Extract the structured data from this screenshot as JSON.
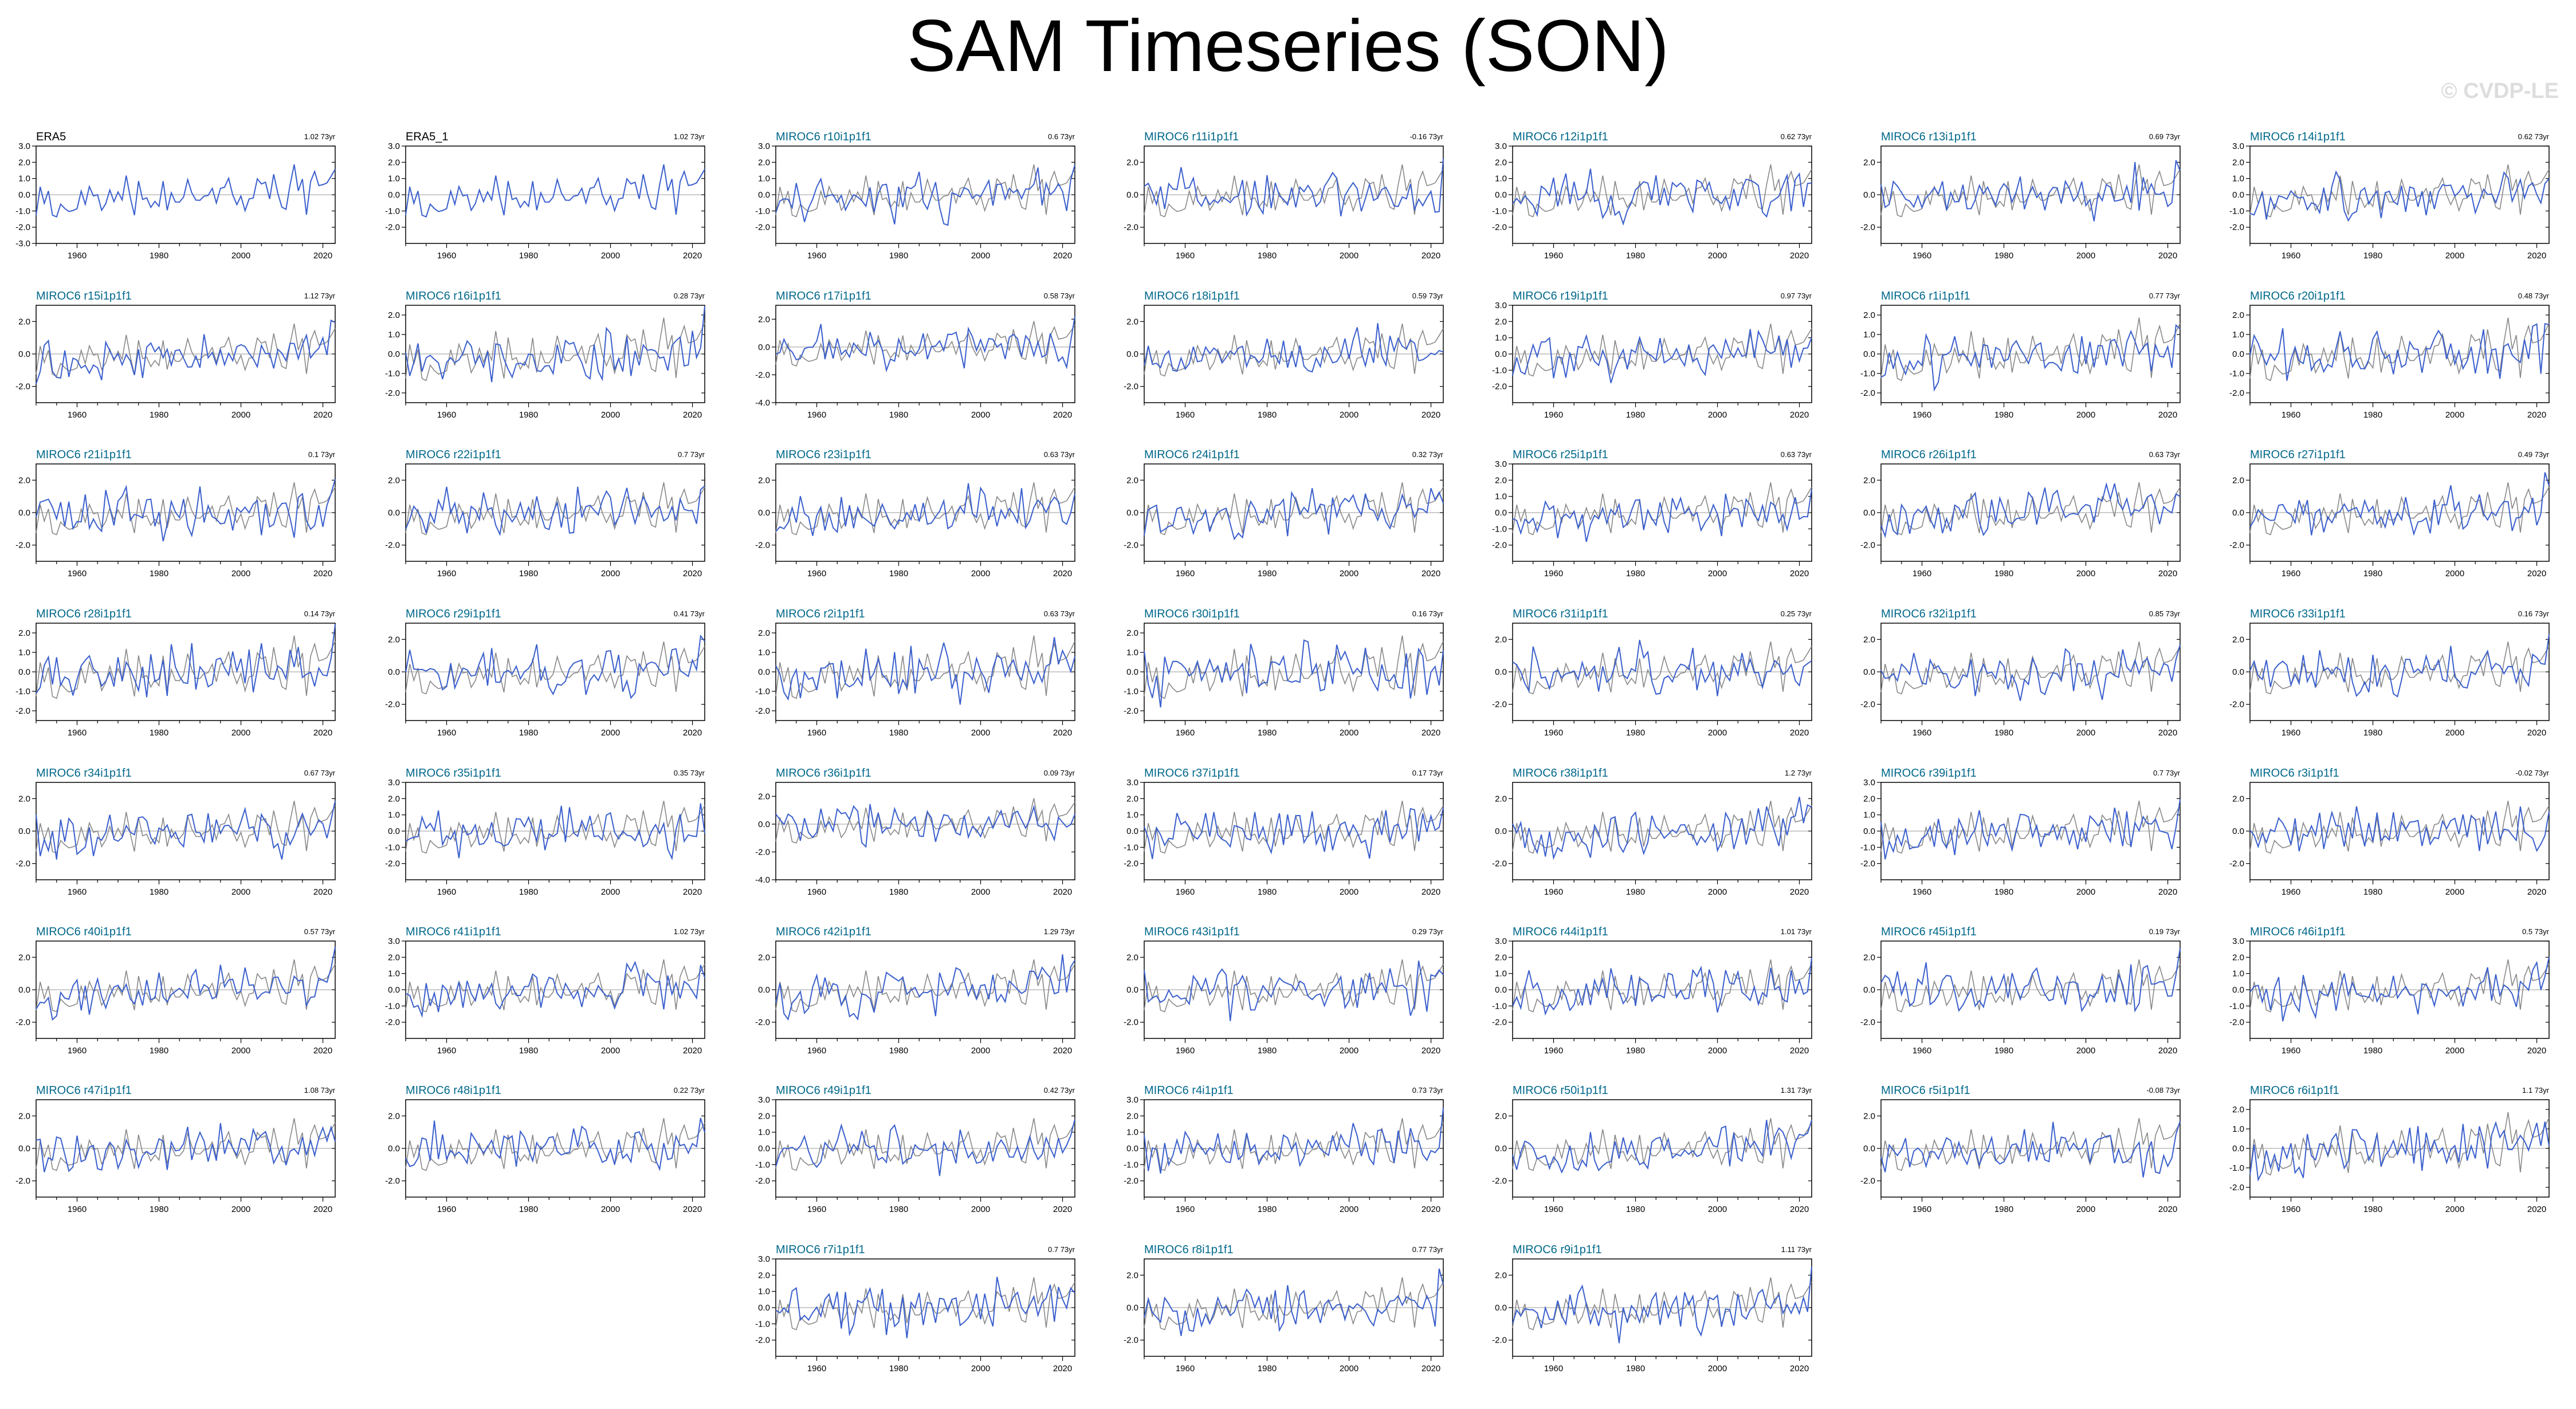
{
  "title": "SAM Timeseries (SON)",
  "watermark": "© CVDP-LE",
  "colors": {
    "model_line": "#3a5fcd",
    "obs_line": "#888888",
    "zero_line": "#9a9a9a",
    "obs_label": "#000000",
    "model_label": "#00688b",
    "frame": "#000000",
    "watermark": "#dddddd"
  },
  "chart_data": {
    "type": "line",
    "x_range": [
      1950,
      2023
    ],
    "x_ticks": [
      1960,
      1980,
      2000,
      2020
    ],
    "series_note_years": "annual SON values 1950-2023",
    "panels": [
      {
        "label": "ERA5",
        "trend": "1.02 73yr",
        "kind": "obs",
        "seed": 101,
        "yticks": [
          -3.0,
          -2.0,
          -1.0,
          0.0,
          1.0,
          2.0,
          3.0
        ],
        "ylim": [
          -3,
          3
        ]
      },
      {
        "label": "ERA5_1",
        "trend": "1.02 73yr",
        "kind": "obs",
        "seed": 101,
        "yticks": [
          -2.0,
          -1.0,
          0.0,
          1.0,
          2.0,
          3.0
        ],
        "ylim": [
          -3,
          3
        ]
      },
      {
        "label": "MIROC6 r10i1p1f1",
        "trend": "0.6 73yr",
        "kind": "model",
        "seed": 10,
        "yticks": [
          -2.0,
          -1.0,
          0.0,
          1.0,
          2.0,
          3.0
        ],
        "ylim": [
          -3,
          3
        ]
      },
      {
        "label": "MIROC6 r11i1p1f1",
        "trend": "-0.16 73yr",
        "kind": "model",
        "seed": 11,
        "yticks": [
          -2.0,
          0.0,
          2.0
        ],
        "ylim": [
          -3,
          3
        ]
      },
      {
        "label": "MIROC6 r12i1p1f1",
        "trend": "0.62 73yr",
        "kind": "model",
        "seed": 12,
        "yticks": [
          -2.0,
          -1.0,
          0.0,
          1.0,
          2.0,
          3.0
        ],
        "ylim": [
          -3,
          3
        ]
      },
      {
        "label": "MIROC6 r13i1p1f1",
        "trend": "0.69 73yr",
        "kind": "model",
        "seed": 13,
        "yticks": [
          -2.0,
          0.0,
          2.0
        ],
        "ylim": [
          -3,
          3
        ]
      },
      {
        "label": "MIROC6 r14i1p1f1",
        "trend": "0.62 73yr",
        "kind": "model",
        "seed": 14,
        "yticks": [
          -2.0,
          -1.0,
          0.0,
          1.0,
          2.0,
          3.0
        ],
        "ylim": [
          -3,
          3
        ]
      },
      {
        "label": "MIROC6 r15i1p1f1",
        "trend": "1.12 73yr",
        "kind": "model",
        "seed": 15,
        "yticks": [
          -2.0,
          0.0,
          2.0
        ],
        "ylim": [
          -3,
          3
        ]
      },
      {
        "label": "MIROC6 r16i1p1f1",
        "trend": "0.28 73yr",
        "kind": "model",
        "seed": 16,
        "yticks": [
          -2.0,
          -1.0,
          0.0,
          1.0,
          2.0
        ],
        "ylim": [
          -2.5,
          2.5
        ]
      },
      {
        "label": "MIROC6 r17i1p1f1",
        "trend": "0.58 73yr",
        "kind": "model",
        "seed": 17,
        "yticks": [
          -4.0,
          -2.0,
          0.0,
          2.0
        ],
        "ylim": [
          -4,
          3
        ]
      },
      {
        "label": "MIROC6 r18i1p1f1",
        "trend": "0.59 73yr",
        "kind": "model",
        "seed": 18,
        "yticks": [
          -2.0,
          0.0,
          2.0
        ],
        "ylim": [
          -3,
          3
        ]
      },
      {
        "label": "MIROC6 r19i1p1f1",
        "trend": "0.97 73yr",
        "kind": "model",
        "seed": 19,
        "yticks": [
          -2.0,
          -1.0,
          0.0,
          1.0,
          2.0,
          3.0
        ],
        "ylim": [
          -3,
          3
        ]
      },
      {
        "label": "MIROC6 r1i1p1f1",
        "trend": "0.77 73yr",
        "kind": "model",
        "seed": 1,
        "yticks": [
          -2.0,
          -1.0,
          0.0,
          1.0,
          2.0
        ],
        "ylim": [
          -2.5,
          2.5
        ]
      },
      {
        "label": "MIROC6 r20i1p1f1",
        "trend": "0.48 73yr",
        "kind": "model",
        "seed": 20,
        "yticks": [
          -2.0,
          -1.0,
          0.0,
          1.0,
          2.0
        ],
        "ylim": [
          -2.5,
          2.5
        ]
      },
      {
        "label": "MIROC6 r21i1p1f1",
        "trend": "0.1 73yr",
        "kind": "model",
        "seed": 21,
        "yticks": [
          -2.0,
          0.0,
          2.0
        ],
        "ylim": [
          -3,
          3
        ]
      },
      {
        "label": "MIROC6 r22i1p1f1",
        "trend": "0.7 73yr",
        "kind": "model",
        "seed": 22,
        "yticks": [
          -2.0,
          0.0,
          2.0
        ],
        "ylim": [
          -3,
          3
        ]
      },
      {
        "label": "MIROC6 r23i1p1f1",
        "trend": "0.63 73yr",
        "kind": "model",
        "seed": 23,
        "yticks": [
          -2.0,
          0.0,
          2.0
        ],
        "ylim": [
          -3,
          3
        ]
      },
      {
        "label": "MIROC6 r24i1p1f1",
        "trend": "0.32 73yr",
        "kind": "model",
        "seed": 24,
        "yticks": [
          -2.0,
          0.0,
          2.0
        ],
        "ylim": [
          -3,
          3
        ]
      },
      {
        "label": "MIROC6 r25i1p1f1",
        "trend": "0.63 73yr",
        "kind": "model",
        "seed": 25,
        "yticks": [
          -2.0,
          -1.0,
          0.0,
          1.0,
          2.0,
          3.0
        ],
        "ylim": [
          -3,
          3
        ]
      },
      {
        "label": "MIROC6 r26i1p1f1",
        "trend": "0.63 73yr",
        "kind": "model",
        "seed": 26,
        "yticks": [
          -2.0,
          0.0,
          2.0
        ],
        "ylim": [
          -3,
          3
        ]
      },
      {
        "label": "MIROC6 r27i1p1f1",
        "trend": "0.49 73yr",
        "kind": "model",
        "seed": 27,
        "yticks": [
          -2.0,
          0.0,
          2.0
        ],
        "ylim": [
          -3,
          3
        ]
      },
      {
        "label": "MIROC6 r28i1p1f1",
        "trend": "0.14 73yr",
        "kind": "model",
        "seed": 28,
        "yticks": [
          -2.0,
          -1.0,
          0.0,
          1.0,
          2.0
        ],
        "ylim": [
          -2.5,
          2.5
        ]
      },
      {
        "label": "MIROC6 r29i1p1f1",
        "trend": "0.41 73yr",
        "kind": "model",
        "seed": 29,
        "yticks": [
          -2.0,
          0.0,
          2.0
        ],
        "ylim": [
          -3,
          3
        ]
      },
      {
        "label": "MIROC6 r2i1p1f1",
        "trend": "0.63 73yr",
        "kind": "model",
        "seed": 2,
        "yticks": [
          -2.0,
          -1.0,
          0.0,
          1.0,
          2.0
        ],
        "ylim": [
          -2.5,
          2.5
        ]
      },
      {
        "label": "MIROC6 r30i1p1f1",
        "trend": "0.16 73yr",
        "kind": "model",
        "seed": 30,
        "yticks": [
          -2.0,
          -1.0,
          0.0,
          1.0,
          2.0
        ],
        "ylim": [
          -2.5,
          2.5
        ]
      },
      {
        "label": "MIROC6 r31i1p1f1",
        "trend": "0.25 73yr",
        "kind": "model",
        "seed": 31,
        "yticks": [
          -2.0,
          0.0,
          2.0
        ],
        "ylim": [
          -3,
          3
        ]
      },
      {
        "label": "MIROC6 r32i1p1f1",
        "trend": "0.85 73yr",
        "kind": "model",
        "seed": 32,
        "yticks": [
          -2.0,
          0.0,
          2.0
        ],
        "ylim": [
          -3,
          3
        ]
      },
      {
        "label": "MIROC6 r33i1p1f1",
        "trend": "0.16 73yr",
        "kind": "model",
        "seed": 33,
        "yticks": [
          -2.0,
          0.0,
          2.0
        ],
        "ylim": [
          -3,
          3
        ]
      },
      {
        "label": "MIROC6 r34i1p1f1",
        "trend": "0.67 73yr",
        "kind": "model",
        "seed": 34,
        "yticks": [
          -2.0,
          0.0,
          2.0
        ],
        "ylim": [
          -3,
          3
        ]
      },
      {
        "label": "MIROC6 r35i1p1f1",
        "trend": "0.35 73yr",
        "kind": "model",
        "seed": 35,
        "yticks": [
          -2.0,
          -1.0,
          0.0,
          1.0,
          2.0,
          3.0
        ],
        "ylim": [
          -3,
          3
        ]
      },
      {
        "label": "MIROC6 r36i1p1f1",
        "trend": "0.09 73yr",
        "kind": "model",
        "seed": 36,
        "yticks": [
          -4.0,
          -2.0,
          0.0,
          2.0
        ],
        "ylim": [
          -4,
          3
        ]
      },
      {
        "label": "MIROC6 r37i1p1f1",
        "trend": "0.17 73yr",
        "kind": "model",
        "seed": 37,
        "yticks": [
          -2.0,
          -1.0,
          0.0,
          1.0,
          2.0,
          3.0
        ],
        "ylim": [
          -3,
          3
        ]
      },
      {
        "label": "MIROC6 r38i1p1f1",
        "trend": "1.2 73yr",
        "kind": "model",
        "seed": 38,
        "yticks": [
          -2.0,
          0.0,
          2.0
        ],
        "ylim": [
          -3,
          3
        ]
      },
      {
        "label": "MIROC6 r39i1p1f1",
        "trend": "0.7 73yr",
        "kind": "model",
        "seed": 39,
        "yticks": [
          -2.0,
          -1.0,
          0.0,
          1.0,
          2.0,
          3.0
        ],
        "ylim": [
          -3,
          3
        ]
      },
      {
        "label": "MIROC6 r3i1p1f1",
        "trend": "-0.02 73yr",
        "kind": "model",
        "seed": 3,
        "yticks": [
          -2.0,
          0.0,
          2.0
        ],
        "ylim": [
          -3,
          3
        ]
      },
      {
        "label": "MIROC6 r40i1p1f1",
        "trend": "0.57 73yr",
        "kind": "model",
        "seed": 40,
        "yticks": [
          -2.0,
          0.0,
          2.0
        ],
        "ylim": [
          -3,
          3
        ]
      },
      {
        "label": "MIROC6 r41i1p1f1",
        "trend": "1.02 73yr",
        "kind": "model",
        "seed": 41,
        "yticks": [
          -2.0,
          -1.0,
          0.0,
          1.0,
          2.0,
          3.0
        ],
        "ylim": [
          -3,
          3
        ]
      },
      {
        "label": "MIROC6 r42i1p1f1",
        "trend": "1.29 73yr",
        "kind": "model",
        "seed": 42,
        "yticks": [
          -2.0,
          0.0,
          2.0
        ],
        "ylim": [
          -3,
          3
        ]
      },
      {
        "label": "MIROC6 r43i1p1f1",
        "trend": "0.29 73yr",
        "kind": "model",
        "seed": 43,
        "yticks": [
          -2.0,
          0.0,
          2.0
        ],
        "ylim": [
          -3,
          3
        ]
      },
      {
        "label": "MIROC6 r44i1p1f1",
        "trend": "1.01 73yr",
        "kind": "model",
        "seed": 44,
        "yticks": [
          -2.0,
          -1.0,
          0.0,
          1.0,
          2.0,
          3.0
        ],
        "ylim": [
          -3,
          3
        ]
      },
      {
        "label": "MIROC6 r45i1p1f1",
        "trend": "0.19 73yr",
        "kind": "model",
        "seed": 45,
        "yticks": [
          -2.0,
          0.0,
          2.0
        ],
        "ylim": [
          -3,
          3
        ]
      },
      {
        "label": "MIROC6 r46i1p1f1",
        "trend": "0.5 73yr",
        "kind": "model",
        "seed": 46,
        "yticks": [
          -2.0,
          -1.0,
          0.0,
          1.0,
          2.0,
          3.0
        ],
        "ylim": [
          -3,
          3
        ]
      },
      {
        "label": "MIROC6 r47i1p1f1",
        "trend": "1.08 73yr",
        "kind": "model",
        "seed": 47,
        "yticks": [
          -2.0,
          0.0,
          2.0
        ],
        "ylim": [
          -3,
          3
        ]
      },
      {
        "label": "MIROC6 r48i1p1f1",
        "trend": "0.22 73yr",
        "kind": "model",
        "seed": 48,
        "yticks": [
          -2.0,
          0.0,
          2.0
        ],
        "ylim": [
          -3,
          3
        ]
      },
      {
        "label": "MIROC6 r49i1p1f1",
        "trend": "0.42 73yr",
        "kind": "model",
        "seed": 49,
        "yticks": [
          -2.0,
          -1.0,
          0.0,
          1.0,
          2.0,
          3.0
        ],
        "ylim": [
          -3,
          3
        ]
      },
      {
        "label": "MIROC6 r4i1p1f1",
        "trend": "0.73 73yr",
        "kind": "model",
        "seed": 4,
        "yticks": [
          -2.0,
          -1.0,
          0.0,
          1.0,
          2.0,
          3.0
        ],
        "ylim": [
          -3,
          3
        ]
      },
      {
        "label": "MIROC6 r50i1p1f1",
        "trend": "1.31 73yr",
        "kind": "model",
        "seed": 50,
        "yticks": [
          -2.0,
          0.0,
          2.0
        ],
        "ylim": [
          -3,
          3
        ]
      },
      {
        "label": "MIROC6 r5i1p1f1",
        "trend": "-0.08 73yr",
        "kind": "model",
        "seed": 5,
        "yticks": [
          -2.0,
          0.0,
          2.0
        ],
        "ylim": [
          -3,
          3
        ]
      },
      {
        "label": "MIROC6 r6i1p1f1",
        "trend": "1.1 73yr",
        "kind": "model",
        "seed": 6,
        "yticks": [
          -2.0,
          -1.0,
          0.0,
          1.0,
          2.0
        ],
        "ylim": [
          -2.5,
          2.5
        ]
      },
      {
        "label": "MIROC6 r7i1p1f1",
        "trend": "0.7 73yr",
        "kind": "model",
        "seed": 7,
        "yticks": [
          -2.0,
          -1.0,
          0.0,
          1.0,
          2.0,
          3.0
        ],
        "ylim": [
          -3,
          3
        ]
      },
      {
        "label": "MIROC6 r8i1p1f1",
        "trend": "0.77 73yr",
        "kind": "model",
        "seed": 8,
        "yticks": [
          -2.0,
          0.0,
          2.0
        ],
        "ylim": [
          -3,
          3
        ]
      },
      {
        "label": "MIROC6 r9i1p1f1",
        "trend": "1.11 73yr",
        "kind": "model",
        "seed": 9,
        "yticks": [
          -2.0,
          0.0,
          2.0
        ],
        "ylim": [
          -3,
          3
        ]
      }
    ]
  }
}
